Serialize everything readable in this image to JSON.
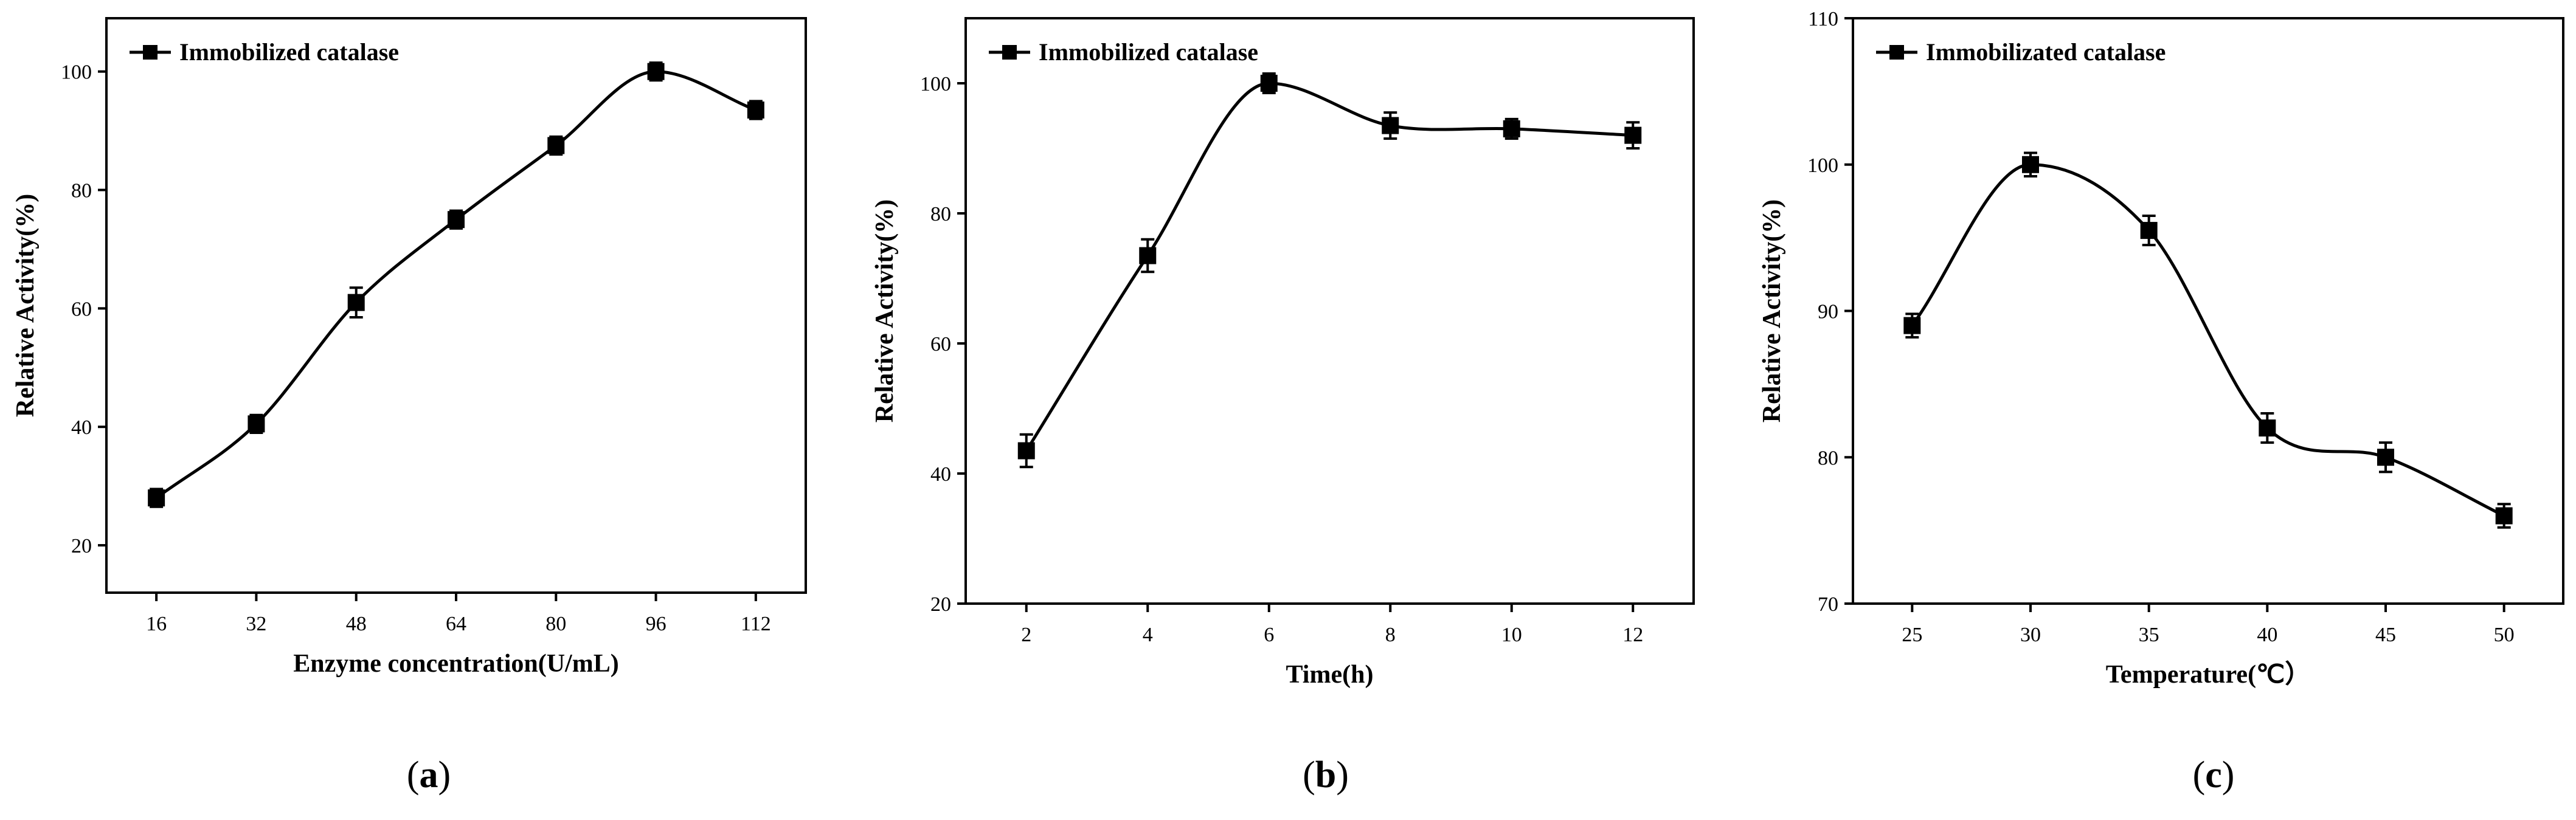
{
  "chart_data": [
    {
      "type": "line",
      "panel": "(a)",
      "panel_letter": "a",
      "legend": "Immobilized catalase",
      "legend_position": "top-left",
      "xlabel": "Enzyme concentration(U/mL)",
      "ylabel": "Relative  Activity(%)",
      "x": [
        16,
        32,
        48,
        64,
        80,
        96,
        112
      ],
      "values": [
        28,
        40.5,
        61,
        75,
        87.5,
        100,
        93.5
      ],
      "errors": [
        1.5,
        1.5,
        2.5,
        1.5,
        1.5,
        1.5,
        1.5
      ],
      "xlim": [
        8,
        120
      ],
      "ylim": [
        12,
        109
      ],
      "xticks": [
        16,
        32,
        48,
        64,
        80,
        96,
        112
      ],
      "yticks": [
        20,
        40,
        60,
        80,
        100
      ],
      "grid": false
    },
    {
      "type": "line",
      "panel": "(b)",
      "panel_letter": "b",
      "legend": "Immobilized catalase",
      "legend_position": "top-left",
      "xlabel": "Time(h)",
      "ylabel": "Relative  Activity(%)",
      "x": [
        2,
        4,
        6,
        8,
        10,
        12
      ],
      "values": [
        43.5,
        73.5,
        100,
        93.5,
        93,
        92
      ],
      "errors": [
        2.5,
        2.5,
        1.5,
        2,
        1.5,
        2
      ],
      "xlim": [
        1,
        13
      ],
      "ylim": [
        20,
        110
      ],
      "xticks": [
        2,
        4,
        6,
        8,
        10,
        12
      ],
      "yticks": [
        20,
        40,
        60,
        80,
        100
      ],
      "grid": false
    },
    {
      "type": "line",
      "panel": "(c)",
      "panel_letter": "c",
      "legend": "Immobilizated catalase",
      "legend_position": "top-left",
      "xlabel": "Temperature(℃）",
      "ylabel": "Relative Activity(%)",
      "x": [
        25,
        30,
        35,
        40,
        45,
        50
      ],
      "values": [
        89,
        100,
        95.5,
        82,
        80,
        76
      ],
      "errors": [
        0.8,
        0.8,
        1,
        1,
        1,
        0.8
      ],
      "xlim": [
        22.5,
        52.5
      ],
      "ylim": [
        70,
        110
      ],
      "xticks": [
        25,
        30,
        35,
        40,
        45,
        50
      ],
      "yticks": [
        70,
        80,
        90,
        100,
        110
      ],
      "grid": false
    }
  ]
}
